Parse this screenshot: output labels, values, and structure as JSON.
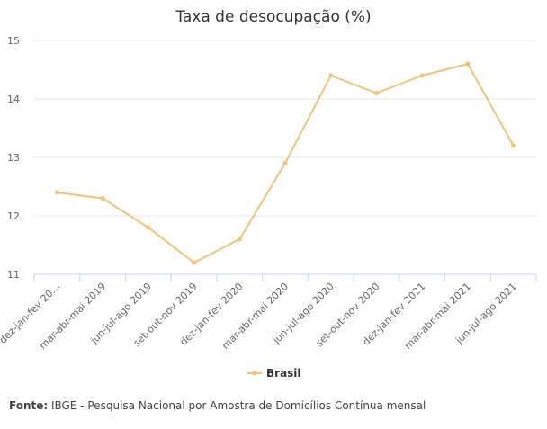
{
  "chart_data": {
    "type": "line",
    "title": "Taxa de desocupação (%)",
    "xlabel": "",
    "ylabel": "",
    "categories": [
      "dez-jan-fev 20…",
      "mar-abr-mai 2019",
      "jun-jul-ago 2019",
      "set-out-nov 2019",
      "dez-jan-fev 2020",
      "mar-abr-mai 2020",
      "jun-jul-ago 2020",
      "set-out-nov 2020",
      "dez-jan-fev 2021",
      "mar-abr-mai 2021",
      "jun-jul-ago 2021"
    ],
    "series": [
      {
        "name": "Brasil",
        "values": [
          12.4,
          12.3,
          11.8,
          11.2,
          11.6,
          12.9,
          14.4,
          14.1,
          14.4,
          14.6,
          13.2
        ]
      }
    ],
    "ylim": [
      11,
      15
    ],
    "yticks": [
      11,
      12,
      13,
      14,
      15
    ],
    "grid": true,
    "legend": "bottom-center",
    "colors": {
      "series": "#f0c27b",
      "grid": "#e6e6e6",
      "axis": "#ccd6eb"
    }
  },
  "source": {
    "label": "Fonte:",
    "text": "IBGE - Pesquisa Nacional por Amostra de Domicílios Contínua mensal"
  }
}
